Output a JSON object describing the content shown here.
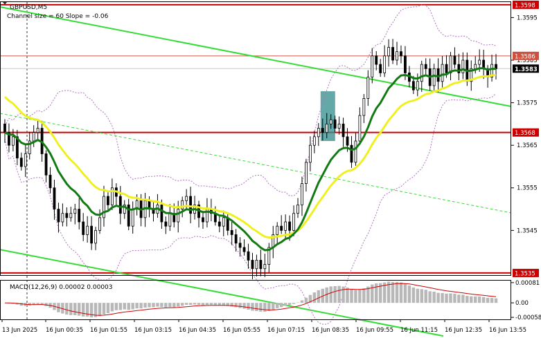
{
  "chart_data": [
    {
      "type": "candlestick",
      "symbol_label": "GBPUSD,M5",
      "indicator_label": "Channel size = 60 Slope = -0.06",
      "price_ticks": [
        "1.3595",
        "1.3585",
        "1.3575",
        "1.3565",
        "1.3555",
        "1.3545"
      ],
      "price_tick_values": [
        1.3595,
        1.3585,
        1.3575,
        1.3565,
        1.3555,
        1.3545
      ],
      "ylim": [
        1.35345,
        1.35988
      ],
      "levels": [
        {
          "value": 1.3598,
          "label": "1.3598",
          "color": "#cc0000"
        },
        {
          "value": 1.3586,
          "label": "1.3586",
          "color": "#d05040"
        },
        {
          "value": 1.3568,
          "label": "1.3568",
          "color": "#cc0000"
        },
        {
          "value": 1.3535,
          "label": "1.3535",
          "color": "#cc0000"
        }
      ],
      "current_price": {
        "value": 1.3583,
        "label": "1.3583"
      },
      "ma_fast_color": "#127a12",
      "ma_slow_color": "#f0f020",
      "channel_color": "#33dd33",
      "x_ticks": [
        "13 Jun 2025",
        "16 Jun 00:35",
        "16 Jun 01:55",
        "16 Jun 03:15",
        "16 Jun 04:35",
        "16 Jun 05:55",
        "16 Jun 07:15",
        "16 Jun 08:35",
        "16 Jun 09:55",
        "16 Jun 11:15",
        "16 Jun 12:35",
        "16 Jun 13:55"
      ],
      "highlight_box": {
        "x_from": 16.25,
        "x_to": 16.99,
        "y_from": 1.3566,
        "y_to": 1.35777,
        "color": "#3a8f8f"
      },
      "close": [
        1.3568,
        1.3565,
        1.3567,
        1.3562,
        1.356,
        1.3563,
        1.3566,
        1.3568,
        1.3569,
        1.3563,
        1.3558,
        1.3555,
        1.355,
        1.3547,
        1.3549,
        1.3548,
        1.3549,
        1.355,
        1.3547,
        1.3544,
        1.3546,
        1.3542,
        1.3545,
        1.3548,
        1.3553,
        1.3551,
        1.3555,
        1.3553,
        1.3549,
        1.3551,
        1.3546,
        1.355,
        1.3552,
        1.3548,
        1.3552,
        1.355,
        1.3549,
        1.3551,
        1.3547,
        1.3546,
        1.3549,
        1.3547,
        1.355,
        1.3552,
        1.3553,
        1.3549,
        1.3551,
        1.3548,
        1.3547,
        1.355,
        1.3549,
        1.3547,
        1.3546,
        1.3548,
        1.3545,
        1.3544,
        1.3542,
        1.3541,
        1.354,
        1.3538,
        1.3536,
        1.3538,
        1.3536,
        1.3537,
        1.3541,
        1.3544,
        1.3546,
        1.3545,
        1.3547,
        1.3545,
        1.3549,
        1.3551,
        1.3556,
        1.3561,
        1.3565,
        1.3567,
        1.3569,
        1.3568,
        1.357,
        1.3571,
        1.3569,
        1.357,
        1.3567,
        1.3565,
        1.3561,
        1.3566,
        1.3572,
        1.3576,
        1.3581,
        1.3586,
        1.3584,
        1.3582,
        1.3586,
        1.3588,
        1.3585,
        1.3587,
        1.3586,
        1.3582,
        1.358,
        1.3578,
        1.358,
        1.3584,
        1.3583,
        1.3579,
        1.3583,
        1.358,
        1.3584,
        1.3582,
        1.3586,
        1.3584,
        1.3582,
        1.3585,
        1.358,
        1.3583,
        1.3584,
        1.3585,
        1.3583,
        1.3581,
        1.3584,
        1.3583
      ],
      "macd": {
        "label": "MACD(12,26,9) 0.00002 0.00003",
        "ticks": [
          "0.00081",
          "0.00",
          "-0.00058"
        ],
        "tick_values": [
          0.00081,
          0.0,
          -0.00058
        ],
        "ylim": [
          -0.00066,
          0.00089
        ],
        "signal_color": "#cc0000",
        "hist_color": "#b8b8b8"
      }
    }
  ]
}
